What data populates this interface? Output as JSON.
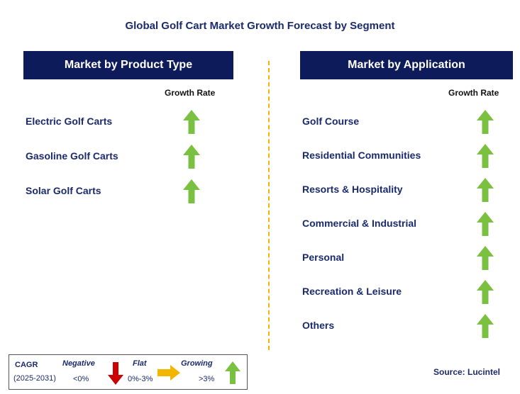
{
  "title": "Global Golf Cart Market Growth Forecast by Segment",
  "colors": {
    "header_bg": "#0e1b5a",
    "arrow_up": "#7ac142",
    "arrow_down": "#cc0000",
    "arrow_flat": "#f2b600",
    "text": "#1a2a6c"
  },
  "chart_data": [
    {
      "type": "table",
      "title": "Market by Product Type",
      "column": "Growth Rate",
      "rows": [
        {
          "label": "Electric Golf Carts",
          "trend": "growing"
        },
        {
          "label": "Gasoline Golf Carts",
          "trend": "growing"
        },
        {
          "label": "Solar Golf Carts",
          "trend": "growing"
        }
      ]
    },
    {
      "type": "table",
      "title": "Market by Application",
      "column": "Growth Rate",
      "rows": [
        {
          "label": "Golf Course",
          "trend": "growing"
        },
        {
          "label": "Residential Communities",
          "trend": "growing"
        },
        {
          "label": "Resorts & Hospitality",
          "trend": "growing"
        },
        {
          "label": "Commercial & Industrial",
          "trend": "growing"
        },
        {
          "label": "Personal",
          "trend": "growing"
        },
        {
          "label": "Recreation & Leisure",
          "trend": "growing"
        },
        {
          "label": "Others",
          "trend": "growing"
        }
      ]
    }
  ],
  "legend": {
    "cagr_label": "CAGR",
    "period": "(2025-2031)",
    "negative_label": "Negative",
    "negative_range": "<0%",
    "flat_label": "Flat",
    "flat_range": "0%-3%",
    "growing_label": "Growing",
    "growing_range": ">3%"
  },
  "source": "Source: Lucintel"
}
